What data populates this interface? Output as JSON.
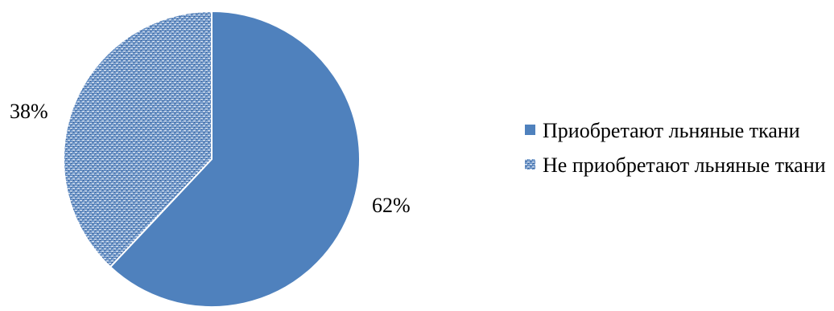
{
  "chart_data": {
    "type": "pie",
    "categories": [
      "Приобретают льняные ткани",
      "Не приобретают льняные ткани"
    ],
    "values": [
      62,
      38
    ],
    "labels": [
      "62%",
      "38%"
    ],
    "colors": [
      "#4f81bd",
      "#4f81bd"
    ],
    "fills": [
      "solid",
      "woven-texture"
    ],
    "legend_position": "right"
  },
  "legend": {
    "items": [
      {
        "label": "Приобретают льняные ткани"
      },
      {
        "label": "Не приобретают льняные ткани"
      }
    ]
  }
}
